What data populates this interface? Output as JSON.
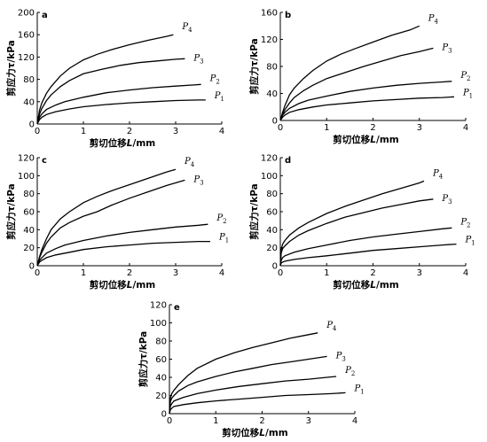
{
  "chart_data": [
    {
      "id": "a",
      "type": "line",
      "panel_label": "a",
      "xlabel_pre": "剪切位移",
      "xlabel_var": "L",
      "xlabel_unit": "/mm",
      "ylabel": "剪应力τ/kPa",
      "xlim": [
        0,
        4
      ],
      "ylim": [
        0,
        200
      ],
      "xticks": [
        0,
        1,
        2,
        3,
        4
      ],
      "yticks": [
        0,
        40,
        80,
        120,
        160,
        200
      ],
      "series": [
        {
          "name": "P4",
          "x": [
            0,
            0.05,
            0.1,
            0.2,
            0.3,
            0.5,
            0.7,
            1.0,
            1.3,
            1.6,
            2.0,
            2.4,
            2.8,
            2.95
          ],
          "y": [
            0,
            25,
            38,
            55,
            67,
            86,
            100,
            115,
            125,
            133,
            142,
            150,
            157,
            160
          ]
        },
        {
          "name": "P3",
          "x": [
            0,
            0.05,
            0.1,
            0.2,
            0.3,
            0.5,
            0.7,
            1.0,
            1.4,
            1.8,
            2.2,
            2.6,
            3.0,
            3.2
          ],
          "y": [
            0,
            18,
            28,
            42,
            52,
            67,
            78,
            90,
            98,
            105,
            110,
            113,
            116,
            117
          ]
        },
        {
          "name": "P2",
          "x": [
            0,
            0.05,
            0.1,
            0.2,
            0.4,
            0.6,
            1.0,
            1.5,
            2.0,
            2.5,
            3.0,
            3.4,
            3.55
          ],
          "y": [
            0,
            12,
            18,
            26,
            34,
            40,
            48,
            56,
            61,
            65,
            68,
            70,
            71
          ]
        },
        {
          "name": "P1",
          "x": [
            0,
            0.05,
            0.1,
            0.2,
            0.4,
            0.7,
            1.0,
            1.5,
            2.0,
            2.5,
            3.0,
            3.5,
            3.65
          ],
          "y": [
            0,
            8,
            12,
            17,
            22,
            27,
            31,
            35,
            38,
            40,
            42,
            43,
            43
          ]
        }
      ]
    },
    {
      "id": "b",
      "type": "line",
      "panel_label": "b",
      "xlabel_pre": "剪切位移",
      "xlabel_var": "L",
      "xlabel_unit": "/mm",
      "ylabel": "剪应力τ/kPa",
      "xlim": [
        0,
        4
      ],
      "ylim": [
        0,
        160
      ],
      "xticks": [
        0,
        1,
        2,
        3,
        4
      ],
      "yticks": [
        0,
        40,
        80,
        120,
        160
      ],
      "series": [
        {
          "name": "P4",
          "x": [
            0,
            0.05,
            0.1,
            0.2,
            0.3,
            0.5,
            0.7,
            1.0,
            1.3,
            1.6,
            2.0,
            2.4,
            2.8,
            3.0
          ],
          "y": [
            0,
            12,
            22,
            38,
            48,
            62,
            74,
            88,
            98,
            106,
            116,
            126,
            134,
            140
          ]
        },
        {
          "name": "P3",
          "x": [
            0,
            0.05,
            0.1,
            0.2,
            0.3,
            0.5,
            0.7,
            1.0,
            1.4,
            1.8,
            2.2,
            2.6,
            3.0,
            3.3
          ],
          "y": [
            0,
            10,
            16,
            26,
            34,
            44,
            52,
            62,
            71,
            80,
            88,
            96,
            102,
            107
          ]
        },
        {
          "name": "P2",
          "x": [
            0,
            0.05,
            0.1,
            0.2,
            0.4,
            0.6,
            1.0,
            1.5,
            2.0,
            2.5,
            3.0,
            3.5,
            3.7
          ],
          "y": [
            0,
            8,
            12,
            18,
            25,
            30,
            36,
            43,
            48,
            52,
            55,
            57,
            58
          ]
        },
        {
          "name": "P1",
          "x": [
            0,
            0.05,
            0.1,
            0.2,
            0.4,
            0.7,
            1.0,
            1.5,
            2.0,
            2.5,
            3.0,
            3.5,
            3.75
          ],
          "y": [
            0,
            5,
            8,
            12,
            16,
            20,
            23,
            26,
            29,
            31,
            33,
            34,
            35
          ]
        }
      ]
    },
    {
      "id": "c",
      "type": "line",
      "panel_label": "c",
      "xlabel_pre": "剪切位移",
      "xlabel_var": "L",
      "xlabel_unit": "/mm",
      "ylabel": "剪应力τ/kPa",
      "xlim": [
        0,
        4
      ],
      "ylim": [
        0,
        120
      ],
      "xticks": [
        0,
        1,
        2,
        3,
        4
      ],
      "yticks": [
        0,
        20,
        40,
        60,
        80,
        100,
        120
      ],
      "series": [
        {
          "name": "P4",
          "x": [
            0,
            0.05,
            0.1,
            0.2,
            0.3,
            0.5,
            0.7,
            1.0,
            1.3,
            1.6,
            2.0,
            2.4,
            2.8,
            3.0
          ],
          "y": [
            0,
            10,
            18,
            30,
            40,
            52,
            60,
            70,
            77,
            83,
            90,
            97,
            104,
            107
          ]
        },
        {
          "name": "P3",
          "x": [
            0,
            0.05,
            0.1,
            0.2,
            0.3,
            0.5,
            0.7,
            1.0,
            1.3,
            1.6,
            2.0,
            2.4,
            2.8,
            3.2
          ],
          "y": [
            0,
            9,
            15,
            25,
            32,
            42,
            48,
            55,
            60,
            67,
            75,
            82,
            89,
            95
          ]
        },
        {
          "name": "P2",
          "x": [
            0,
            0.05,
            0.1,
            0.2,
            0.4,
            0.6,
            1.0,
            1.5,
            2.0,
            2.5,
            3.0,
            3.5,
            3.7
          ],
          "y": [
            0,
            6,
            9,
            14,
            19,
            23,
            28,
            33,
            37,
            40,
            43,
            45,
            46
          ]
        },
        {
          "name": "P1",
          "x": [
            0,
            0.05,
            0.1,
            0.2,
            0.4,
            0.7,
            1.0,
            1.5,
            2.0,
            2.5,
            3.0,
            3.5,
            3.75
          ],
          "y": [
            0,
            4,
            6,
            9,
            12,
            15,
            18,
            21,
            23,
            25,
            26,
            27,
            27
          ]
        }
      ]
    },
    {
      "id": "d",
      "type": "line",
      "panel_label": "d",
      "xlabel_pre": "剪切位移",
      "xlabel_var": "L",
      "xlabel_unit": "/mm",
      "ylabel": "剪应力τ/kPa",
      "xlim": [
        0,
        4
      ],
      "ylim": [
        0,
        120
      ],
      "xticks": [
        0,
        1,
        2,
        3,
        4
      ],
      "yticks": [
        0,
        20,
        40,
        60,
        80,
        100,
        120
      ],
      "series": [
        {
          "name": "P4",
          "x": [
            0,
            0.02,
            0.05,
            0.1,
            0.2,
            0.4,
            0.6,
            1.0,
            1.4,
            1.8,
            2.2,
            2.6,
            3.0,
            3.1
          ],
          "y": [
            0,
            18,
            24,
            28,
            34,
            42,
            48,
            58,
            66,
            73,
            80,
            86,
            92,
            94
          ]
        },
        {
          "name": "P3",
          "x": [
            0,
            0.02,
            0.05,
            0.1,
            0.2,
            0.4,
            0.6,
            1.0,
            1.4,
            1.8,
            2.2,
            2.6,
            3.0,
            3.3
          ],
          "y": [
            0,
            14,
            19,
            22,
            27,
            34,
            39,
            47,
            54,
            59,
            64,
            68,
            72,
            74
          ]
        },
        {
          "name": "P2",
          "x": [
            0,
            0.02,
            0.05,
            0.1,
            0.3,
            0.6,
            1.0,
            1.5,
            2.0,
            2.5,
            3.0,
            3.5,
            3.7
          ],
          "y": [
            0,
            6,
            9,
            11,
            15,
            19,
            23,
            28,
            32,
            35,
            38,
            41,
            42
          ]
        },
        {
          "name": "P1",
          "x": [
            0,
            0.02,
            0.05,
            0.1,
            0.3,
            0.6,
            1.0,
            1.5,
            2.0,
            2.5,
            3.0,
            3.5,
            3.8
          ],
          "y": [
            0,
            3,
            4,
            5,
            7,
            9,
            11,
            14,
            17,
            19,
            21,
            23,
            24
          ]
        }
      ]
    },
    {
      "id": "e",
      "type": "line",
      "panel_label": "e",
      "xlabel_pre": "剪切位移",
      "xlabel_var": "L",
      "xlabel_unit": "/mm",
      "ylabel": "剪应力τ/kPa",
      "xlim": [
        0,
        4
      ],
      "ylim": [
        0,
        120
      ],
      "xticks": [
        0,
        1,
        2,
        3,
        4
      ],
      "yticks": [
        0,
        20,
        40,
        60,
        80,
        100,
        120
      ],
      "series": [
        {
          "name": "P4",
          "x": [
            0,
            0.02,
            0.05,
            0.1,
            0.2,
            0.4,
            0.6,
            1.0,
            1.4,
            1.8,
            2.2,
            2.6,
            3.0,
            3.2
          ],
          "y": [
            0,
            17,
            22,
            26,
            32,
            42,
            50,
            60,
            67,
            73,
            78,
            83,
            87,
            89
          ]
        },
        {
          "name": "P3",
          "x": [
            0,
            0.02,
            0.05,
            0.1,
            0.2,
            0.4,
            0.6,
            1.0,
            1.4,
            1.8,
            2.2,
            2.6,
            3.0,
            3.4
          ],
          "y": [
            0,
            13,
            17,
            20,
            25,
            31,
            35,
            41,
            46,
            50,
            54,
            57,
            60,
            63
          ]
        },
        {
          "name": "P2",
          "x": [
            0,
            0.02,
            0.05,
            0.1,
            0.3,
            0.6,
            1.0,
            1.5,
            2.0,
            2.5,
            3.0,
            3.4,
            3.6
          ],
          "y": [
            0,
            8,
            11,
            14,
            18,
            22,
            26,
            30,
            33,
            36,
            38,
            40,
            41
          ]
        },
        {
          "name": "P1",
          "x": [
            0,
            0.02,
            0.05,
            0.1,
            0.3,
            0.6,
            1.0,
            1.5,
            2.0,
            2.5,
            3.0,
            3.5,
            3.8
          ],
          "y": [
            0,
            4,
            6,
            8,
            10,
            12,
            14,
            16,
            18,
            20,
            21,
            22,
            23
          ]
        }
      ]
    }
  ]
}
